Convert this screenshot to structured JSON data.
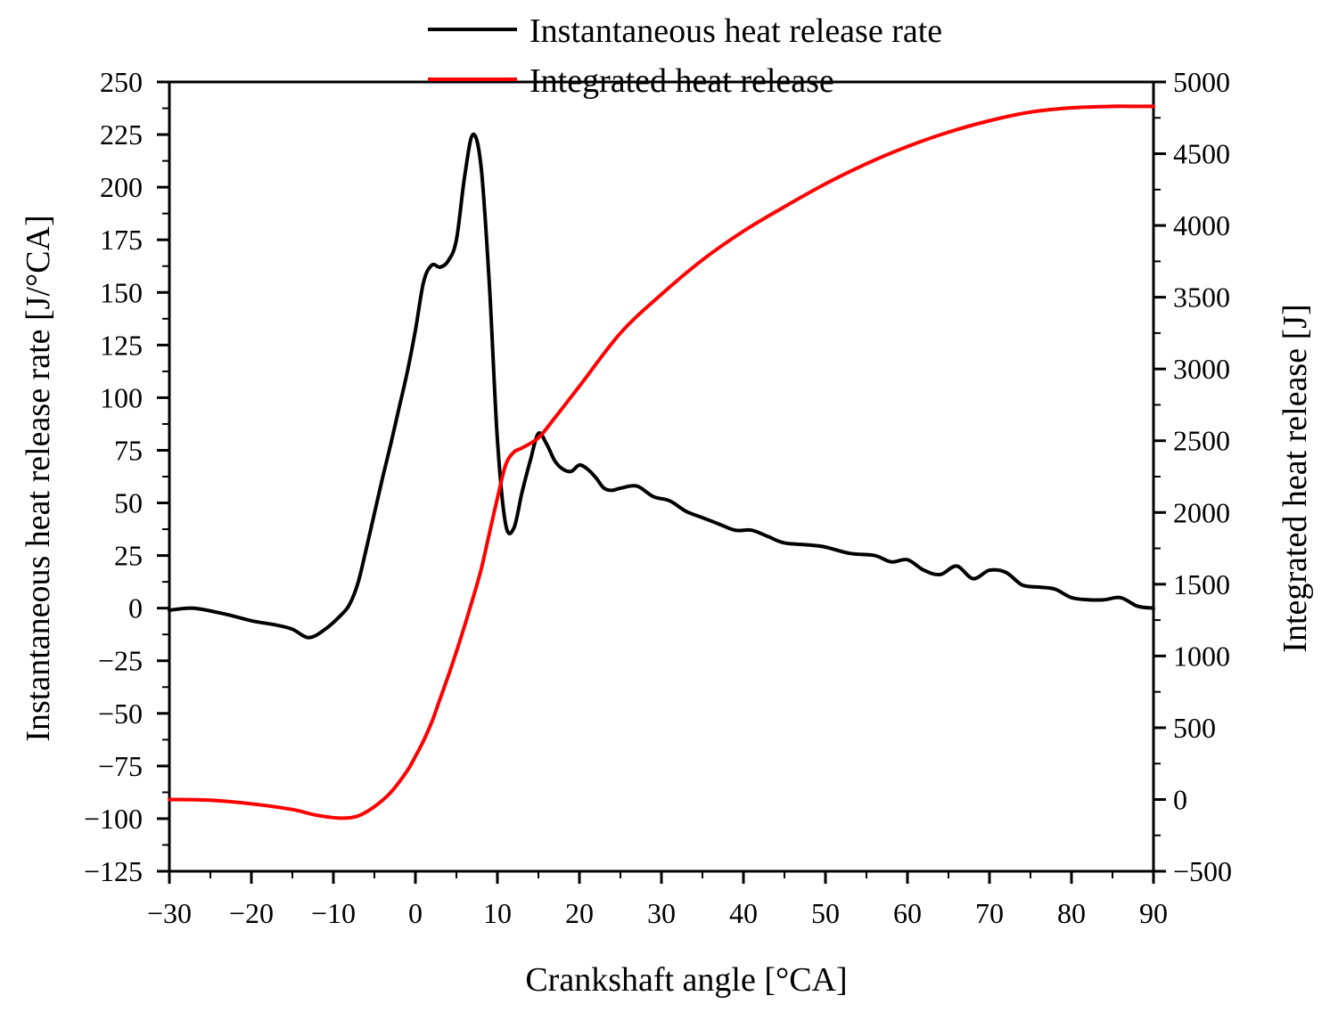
{
  "chart_data": {
    "type": "line",
    "title": "",
    "xlabel": "Crankshaft angle [°CA]",
    "ylabel_left": "Instantaneous heat release rate [J/°CA]",
    "ylabel_right": "Integrated heat release [J]",
    "xlim": [
      -30,
      90
    ],
    "ylim_left": [
      -125,
      250
    ],
    "ylim_right": [
      -500,
      5000
    ],
    "x_ticks": [
      -30,
      -20,
      -10,
      0,
      10,
      20,
      30,
      40,
      50,
      60,
      70,
      80,
      90
    ],
    "x_tick_labels": [
      "−30",
      "−20",
      "−10",
      "0",
      "10",
      "20",
      "30",
      "40",
      "50",
      "60",
      "70",
      "80",
      "90"
    ],
    "y_left_ticks": [
      250,
      225,
      200,
      175,
      150,
      125,
      100,
      75,
      50,
      25,
      0,
      -25,
      -50,
      -75,
      -100,
      -125
    ],
    "y_left_tick_labels": [
      "250",
      "225",
      "200",
      "175",
      "150",
      "125",
      "100",
      "75",
      "50",
      "25",
      "0",
      "−25",
      "−50",
      "−75",
      "−100",
      "−125"
    ],
    "y_right_ticks": [
      5000,
      4500,
      4000,
      3500,
      3000,
      2500,
      2000,
      1500,
      1000,
      500,
      0,
      -500
    ],
    "y_right_tick_labels": [
      "5000",
      "4500",
      "4000",
      "3500",
      "3000",
      "2500",
      "2000",
      "1500",
      "1000",
      "500",
      "0",
      "−500"
    ],
    "grid": false,
    "legend_position": "top-center",
    "series": [
      {
        "name": "Instantaneous heat release rate",
        "axis": "left",
        "color": "#000000",
        "x": [
          -30,
          -27,
          -23,
          -20,
          -17,
          -15,
          -13,
          -11,
          -9,
          -8,
          -7,
          -6,
          -5,
          -4,
          -3,
          -2,
          -1,
          0,
          1,
          2,
          3,
          4,
          5,
          6,
          7,
          8,
          9,
          10,
          11,
          12,
          13,
          14,
          15,
          16,
          17,
          18,
          19,
          20,
          21,
          22,
          23,
          24,
          25,
          27,
          29,
          31,
          33,
          35,
          37,
          39,
          41,
          43,
          45,
          48,
          50,
          53,
          56,
          58,
          60,
          62,
          64,
          66,
          68,
          70,
          72,
          74,
          76,
          78,
          80,
          82,
          84,
          86,
          88,
          90
        ],
        "y": [
          -1,
          0,
          -3,
          -6,
          -8,
          -10,
          -14,
          -10,
          -3,
          2,
          12,
          28,
          45,
          62,
          78,
          95,
          112,
          132,
          155,
          163,
          162,
          165,
          175,
          205,
          225,
          210,
          155,
          80,
          40,
          38,
          55,
          70,
          83,
          78,
          70,
          66,
          65,
          68,
          66,
          62,
          57,
          56,
          57,
          58,
          53,
          51,
          46,
          43,
          40,
          37,
          37,
          34,
          31,
          30,
          29,
          26,
          25,
          22,
          23,
          18,
          16,
          20,
          14,
          18,
          17,
          11,
          10,
          9,
          5,
          4,
          4,
          5,
          1,
          0
        ]
      },
      {
        "name": "Integrated heat release",
        "axis": "right",
        "color": "#ff0000",
        "x": [
          -30,
          -25,
          -20,
          -15,
          -12,
          -9,
          -7,
          -5,
          -3,
          -1,
          0,
          1,
          2,
          3,
          4,
          5,
          6,
          7,
          8,
          9,
          10,
          11,
          12,
          13,
          15,
          17,
          20,
          25,
          30,
          35,
          40,
          45,
          50,
          55,
          60,
          65,
          70,
          75,
          80,
          85,
          88,
          90
        ],
        "y": [
          0,
          -5,
          -30,
          -70,
          -110,
          -130,
          -115,
          -50,
          50,
          200,
          300,
          410,
          540,
          700,
          860,
          1030,
          1210,
          1400,
          1600,
          1850,
          2100,
          2330,
          2420,
          2450,
          2520,
          2660,
          2880,
          3250,
          3520,
          3760,
          3960,
          4130,
          4290,
          4430,
          4550,
          4650,
          4730,
          4790,
          4820,
          4830,
          4830,
          4830
        ]
      }
    ]
  }
}
